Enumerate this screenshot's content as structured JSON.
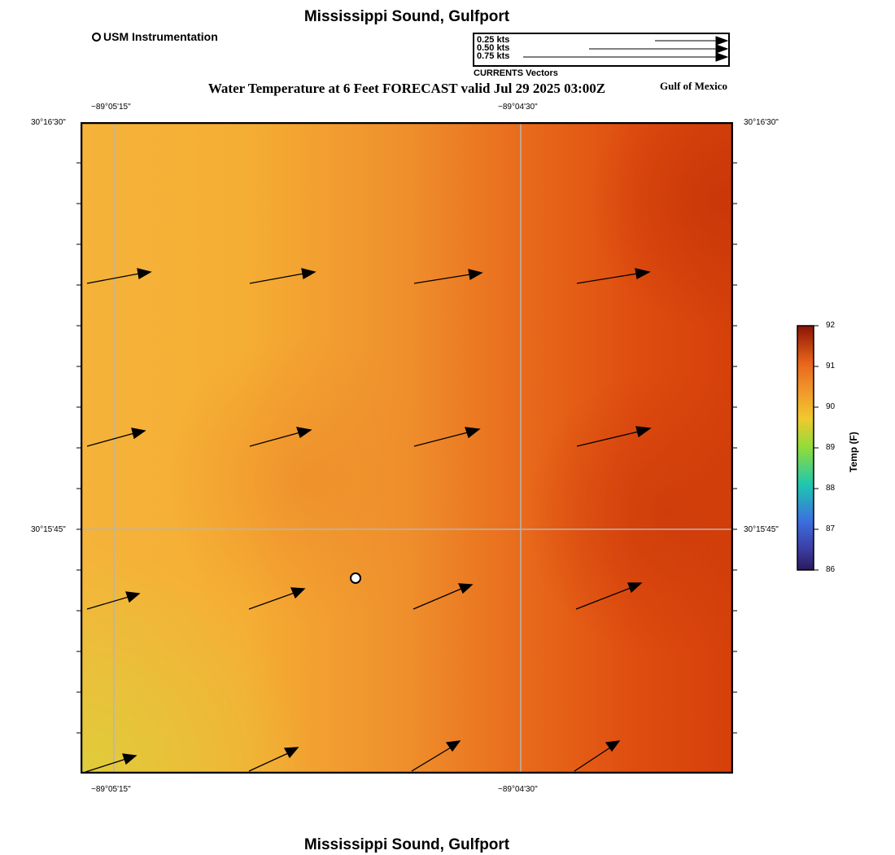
{
  "header": {
    "title": "Mississippi Sound, Gulfport"
  },
  "footer": {
    "title": "Mississippi Sound, Gulfport"
  },
  "station_legend": {
    "label": "USM Instrumentation"
  },
  "map": {
    "title": "Water Temperature at 6 Feet FORECAST valid Jul 29 2025 03:00Z",
    "region_label": "Gulf of Mexico",
    "lon_labels": [
      "−89°05'15\"",
      "−89°04'30\""
    ],
    "lat_labels": [
      "30°16'30\"",
      "30°15'45\""
    ]
  },
  "vector_legend": {
    "title": "CURRENTS Vectors",
    "items": [
      {
        "label": "0.25 kts",
        "speed": 0.25
      },
      {
        "label": "0.50 kts",
        "speed": 0.5
      },
      {
        "label": "0.75 kts",
        "speed": 0.75
      }
    ]
  },
  "colorbar": {
    "title": "Temp (F)",
    "ticks": [
      "86",
      "87",
      "88",
      "89",
      "90",
      "91",
      "92"
    ],
    "colors": [
      "#2a1a5c",
      "#3b6fe0",
      "#1fc7b0",
      "#8fdc3a",
      "#f0c92e",
      "#e8641a",
      "#8a1306"
    ]
  },
  "colors": {
    "background": "#ffffff",
    "grid": "#b0b0b0"
  }
}
